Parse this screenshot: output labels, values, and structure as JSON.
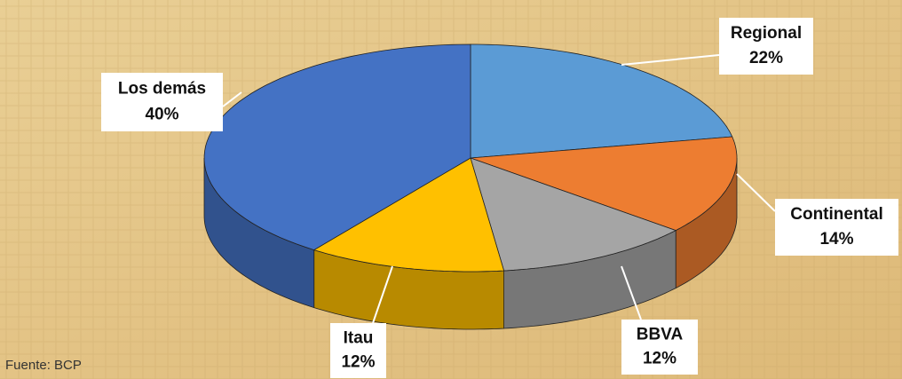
{
  "chart_data": {
    "type": "pie",
    "categories": [
      "Regional",
      "Continental",
      "BBVA",
      "Itau",
      "Los demás"
    ],
    "values": [
      22,
      14,
      12,
      12,
      40
    ],
    "value_labels": [
      "22%",
      "14%",
      "12%",
      "12%",
      "40%"
    ],
    "colors": [
      "#5b9bd5",
      "#ed7d31",
      "#a5a5a5",
      "#ffc000",
      "#4472c4"
    ],
    "source": "Fuente: BCP"
  }
}
